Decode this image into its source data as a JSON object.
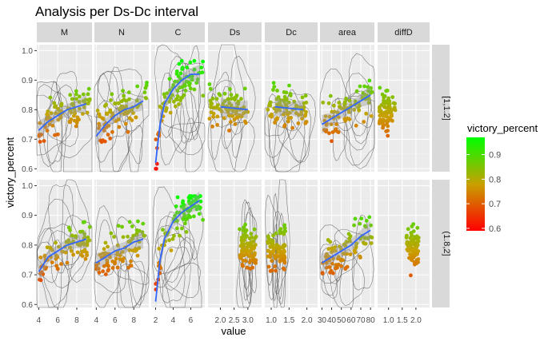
{
  "colors": {
    "panel_bg": "#ebebeb",
    "grid_major": "#ffffff",
    "strip_bg": "#d9d9d9",
    "smooth_line": "#3366ff",
    "ribbon": "#999999",
    "contour": "#555555",
    "gradient_high": "#00ff00",
    "gradient_mid": "#c8a000",
    "gradient_low": "#ff0000"
  },
  "chart_data": {
    "type": "scatter",
    "title": "Analysis per Ds-Dc interval",
    "xlabel": "value",
    "ylabel": "victory_percent",
    "ylim": [
      0.59,
      1.02
    ],
    "y_ticks": [
      0.6,
      0.7,
      0.8,
      0.9,
      1.0
    ],
    "y_tick_labels": [
      "0.6",
      "0.7",
      "0.8",
      "0.9",
      "1.0"
    ],
    "facet_cols": [
      "M",
      "N",
      "C",
      "Ds",
      "Dc",
      "area",
      "diffD"
    ],
    "facet_rows": [
      "[1,1.2]",
      "(1.8,2]"
    ],
    "legend": {
      "title": "victory_percent",
      "position": "right",
      "ticks": [
        0.6,
        0.7,
        0.8,
        0.9
      ],
      "tick_labels": [
        "0.6",
        "0.7",
        "0.8",
        "0.9"
      ],
      "range": [
        0.59,
        0.97
      ]
    },
    "panels": [
      {
        "col": "M",
        "xlim": [
          3.8,
          9.6
        ],
        "x_ticks": [
          4,
          6,
          8
        ],
        "x_tick_labels": [
          "4",
          "6",
          "8"
        ],
        "has_smooth": true,
        "has_contours": true,
        "rows": [
          {
            "row": "[1,1.2]",
            "x_range": [
              4,
              9.4
            ],
            "smooth": [
              [
                4,
                0.73
              ],
              [
                5,
                0.76
              ],
              [
                6,
                0.78
              ],
              [
                7,
                0.8
              ],
              [
                8,
                0.81
              ],
              [
                9,
                0.82
              ]
            ]
          },
          {
            "row": "(1.8,2]",
            "x_range": [
              4,
              9.4
            ],
            "smooth": [
              [
                4,
                0.71
              ],
              [
                5,
                0.76
              ],
              [
                6,
                0.78
              ],
              [
                7,
                0.8
              ],
              [
                8,
                0.81
              ],
              [
                9,
                0.82
              ]
            ]
          }
        ]
      },
      {
        "col": "N",
        "xlim": [
          3.8,
          9.6
        ],
        "x_ticks": [
          4,
          6,
          8
        ],
        "x_tick_labels": [
          "4",
          "6",
          "8"
        ],
        "has_smooth": true,
        "has_contours": true,
        "rows": [
          {
            "row": "[1,1.2]",
            "x_range": [
              4,
              9.4
            ],
            "smooth": [
              [
                4,
                0.71
              ],
              [
                5,
                0.75
              ],
              [
                6,
                0.78
              ],
              [
                7,
                0.8
              ],
              [
                8,
                0.81
              ],
              [
                9,
                0.83
              ]
            ]
          },
          {
            "row": "(1.8,2]",
            "x_range": [
              4,
              9.4
            ],
            "smooth": [
              [
                4,
                0.74
              ],
              [
                5,
                0.76
              ],
              [
                6,
                0.78
              ],
              [
                7,
                0.79
              ],
              [
                8,
                0.81
              ],
              [
                9,
                0.82
              ]
            ]
          }
        ]
      },
      {
        "col": "C",
        "xlim": [
          1.5,
          7.6
        ],
        "x_ticks": [
          2,
          4,
          6
        ],
        "x_tick_labels": [
          "2",
          "4",
          "6"
        ],
        "has_smooth": true,
        "has_contours": true,
        "rows": [
          {
            "row": "[1,1.2]",
            "x_range": [
              2,
              7.4
            ],
            "smooth": [
              [
                2,
                0.62
              ],
              [
                2.5,
                0.75
              ],
              [
                3,
                0.82
              ],
              [
                4,
                0.87
              ],
              [
                5,
                0.9
              ],
              [
                6,
                0.92
              ],
              [
                7,
                0.92
              ]
            ]
          },
          {
            "row": "(1.8,2]",
            "x_range": [
              2,
              7.4
            ],
            "smooth": [
              [
                2,
                0.61
              ],
              [
                2.5,
                0.75
              ],
              [
                3,
                0.82
              ],
              [
                4,
                0.88
              ],
              [
                5,
                0.91
              ],
              [
                6,
                0.93
              ],
              [
                7,
                0.95
              ]
            ]
          }
        ]
      },
      {
        "col": "Ds",
        "xlim": [
          1.55,
          3.5
        ],
        "x_ticks": [
          2.0,
          2.5,
          3.0
        ],
        "x_tick_labels": [
          "2.0",
          "2.5",
          "3.0"
        ],
        "has_smooth": true,
        "has_contours": true,
        "rows": [
          {
            "row": "[1,1.2]",
            "x_range": [
              1.6,
              3.0
            ],
            "smooth": [
              [
                2.0,
                0.81
              ],
              [
                2.5,
                0.805
              ],
              [
                3.0,
                0.8
              ]
            ]
          },
          {
            "row": "(1.8,2]",
            "x_range": [
              2.7,
              3.3
            ],
            "smooth": []
          }
        ]
      },
      {
        "col": "Dc",
        "xlim": [
          0.82,
          2.3
        ],
        "x_ticks": [
          1.0,
          1.5,
          2.0
        ],
        "x_tick_labels": [
          "1.0",
          "1.5",
          "2.0"
        ],
        "has_smooth": true,
        "has_contours": true,
        "rows": [
          {
            "row": "[1,1.2]",
            "x_range": [
              0.9,
              2.0
            ],
            "smooth": [
              [
                1.1,
                0.81
              ],
              [
                1.5,
                0.805
              ],
              [
                1.9,
                0.8
              ]
            ]
          },
          {
            "row": "(1.8,2]",
            "x_range": [
              0.9,
              1.4
            ],
            "smooth": []
          }
        ]
      },
      {
        "col": "area",
        "xlim": [
          28,
          84
        ],
        "x_ticks": [
          30,
          40,
          50,
          60,
          70,
          80
        ],
        "x_tick_labels": [
          "30",
          "40",
          "50",
          "60",
          "70",
          "80"
        ],
        "has_smooth": true,
        "has_contours": true,
        "rows": [
          {
            "row": "[1,1.2]",
            "x_range": [
              30,
              82
            ],
            "smooth": [
              [
                30,
                0.75
              ],
              [
                40,
                0.77
              ],
              [
                50,
                0.79
              ],
              [
                60,
                0.81
              ],
              [
                70,
                0.83
              ],
              [
                80,
                0.85
              ]
            ]
          },
          {
            "row": "(1.8,2]",
            "x_range": [
              30,
              82
            ],
            "smooth": [
              [
                30,
                0.74
              ],
              [
                40,
                0.76
              ],
              [
                50,
                0.78
              ],
              [
                60,
                0.8
              ],
              [
                70,
                0.83
              ],
              [
                80,
                0.85
              ]
            ]
          }
        ]
      },
      {
        "col": "diffD",
        "xlim": [
          0.6,
          2.5
        ],
        "x_ticks": [
          1.0,
          1.5,
          2.0
        ],
        "x_tick_labels": [
          "1.0",
          "1.5",
          "2.0"
        ],
        "has_smooth": false,
        "has_contours": false,
        "rows": [
          {
            "row": "[1,1.2]",
            "x_range": [
              0.65,
              1.25
            ],
            "smooth": []
          },
          {
            "row": "(1.8,2]",
            "x_range": [
              1.65,
              2.1
            ],
            "smooth": []
          }
        ]
      }
    ]
  }
}
